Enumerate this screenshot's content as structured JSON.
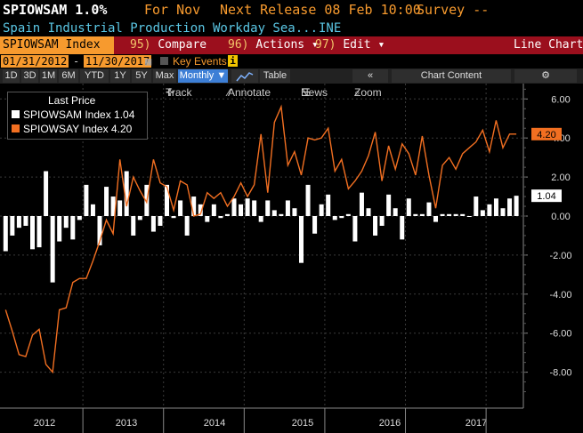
{
  "header": {
    "ticker_value": "SPIOWSAM 1.0%",
    "for_label": "For Nov",
    "next_release": "Next Release 08 Feb 10:00",
    "survey": "Survey --",
    "description": "Spain Industrial Production Workday Sea...",
    "source": "INE"
  },
  "toolbar": {
    "ticker": "SPIOWSAM Index",
    "compare_num": "95)",
    "compare_label": "Compare",
    "actions_num": "96)",
    "actions_label": "Actions",
    "edit_num": "97)",
    "edit_label": "Edit",
    "chart_type": "Line Chart"
  },
  "date_range": {
    "start": "01/31/2012",
    "separator": "-",
    "end": "11/30/2017",
    "key_events": "Key Events",
    "info": "i"
  },
  "periods": [
    "1D",
    "3D",
    "1M",
    "6M",
    "YTD",
    "1Y",
    "5Y",
    "Max"
  ],
  "frequency": "Monthly",
  "frequency_arrow": "▼",
  "table_label": "Table",
  "chart_content_label": "Chart Content",
  "chart_tools": {
    "track": "Track",
    "annotate": "Annotate",
    "news": "News",
    "zoom": "Zoom"
  },
  "legend": {
    "title": "Last Price",
    "items": [
      {
        "label": "SPIOWSAM Index 1.04",
        "color": "#ffffff"
      },
      {
        "label": "SPIOWSAY Index 4.20",
        "color": "#f26f21"
      }
    ]
  },
  "colors": {
    "accent": "#f79a2e",
    "bar": "#ffffff",
    "line": "#f26f21",
    "redbar": "#9b0f1d"
  },
  "chart_data": {
    "type": "bar",
    "x_tick_labels": [
      "2012",
      "2013",
      "2014",
      "2015",
      "2016",
      "2017"
    ],
    "y_tick_labels": [
      "6.00",
      "4.00",
      "2.00",
      "0.00",
      "-2.00",
      "-4.00",
      "-6.00",
      "-8.00"
    ],
    "ylim": [
      -9.2,
      6.5
    ],
    "last_value_labels": [
      "4.20",
      "1.04"
    ],
    "series": [
      {
        "name": "SPIOWSAM Index",
        "type": "bar",
        "values": [
          -1.8,
          -1.0,
          -0.6,
          -0.5,
          -1.7,
          -1.6,
          2.3,
          -3.4,
          -1.3,
          -0.6,
          -1.2,
          -0.2,
          1.6,
          0.6,
          -1.5,
          1.5,
          1.0,
          0.8,
          2.3,
          -1.0,
          -0.2,
          1.6,
          -0.8,
          -0.5,
          1.6,
          -0.1,
          0.8,
          -1.0,
          1.0,
          0.6,
          -0.3,
          0.6,
          -0.1,
          0.1,
          0.9,
          0.6,
          0.9,
          0.8,
          -0.3,
          0.8,
          0.3,
          0.1,
          0.8,
          0.4,
          -2.4,
          1.6,
          -0.9,
          0.6,
          1.1,
          -0.2,
          -0.1,
          0.1,
          -1.3,
          1.2,
          0.4,
          -1.0,
          -0.5,
          1.1,
          0.4,
          -1.2,
          0.9,
          0.1,
          0.1,
          0.7,
          -0.3,
          0.1,
          0.1,
          0.1,
          0.1,
          0.0,
          1.0,
          0.3,
          0.6,
          0.9,
          0.4,
          0.9,
          1.04
        ]
      },
      {
        "name": "SPIOWSAY Index",
        "type": "line",
        "values": [
          -4.8,
          -5.9,
          -7.1,
          -7.2,
          -6.1,
          -5.8,
          -7.6,
          -8.0,
          -4.8,
          -4.7,
          -3.4,
          -3.2,
          -3.2,
          -2.3,
          -1.3,
          -0.2,
          -0.9,
          2.9,
          0.5,
          2.0,
          1.3,
          0.7,
          2.9,
          1.7,
          1.5,
          0.3,
          1.8,
          1.6,
          0.0,
          0.1,
          1.2,
          0.9,
          1.2,
          0.5,
          1.0,
          1.7,
          1.0,
          1.6,
          4.2,
          1.2,
          4.8,
          5.6,
          2.6,
          3.3,
          2.1,
          4.0,
          3.9,
          4.0,
          4.5,
          2.3,
          2.9,
          1.4,
          1.8,
          2.3,
          3.1,
          4.3,
          1.8,
          3.6,
          2.4,
          3.7,
          3.2,
          2.1,
          4.1,
          2.1,
          0.4,
          2.6,
          3.0,
          2.4,
          3.2,
          3.5,
          3.8,
          4.4,
          3.3,
          4.9,
          3.5,
          4.2,
          4.2
        ]
      }
    ],
    "grid": true,
    "legend_position": "top-left"
  }
}
